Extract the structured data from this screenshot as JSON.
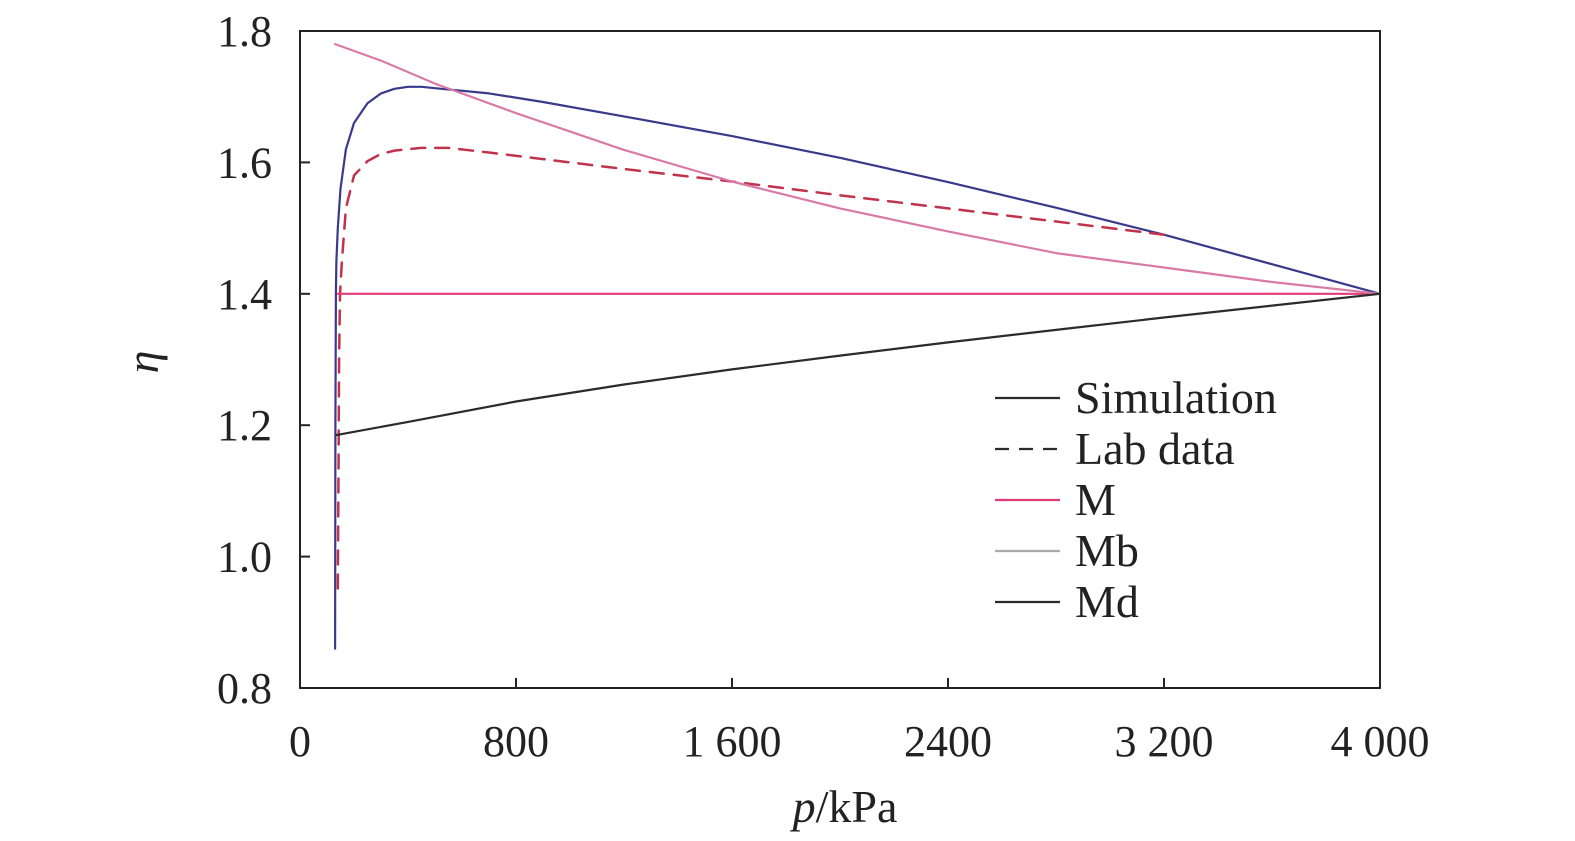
{
  "chart_data": {
    "type": "line",
    "title": "",
    "xlabel": {
      "italic": "p",
      "rest": "/kPa"
    },
    "ylabel": "η",
    "xlim": [
      0,
      4000
    ],
    "ylim": [
      0.8,
      1.8
    ],
    "xticks": [
      {
        "value": 0,
        "label": "0"
      },
      {
        "value": 800,
        "label": "800"
      },
      {
        "value": 1600,
        "label": "1 600"
      },
      {
        "value": 2400,
        "label": "2400"
      },
      {
        "value": 3200,
        "label": "3 200"
      },
      {
        "value": 4000,
        "label": "4 000"
      }
    ],
    "yticks": [
      {
        "value": 0.8,
        "label": "0.8"
      },
      {
        "value": 1.0,
        "label": "1.0"
      },
      {
        "value": 1.2,
        "label": "1.2"
      },
      {
        "value": 1.4,
        "label": "1.4"
      },
      {
        "value": 1.6,
        "label": "1.6"
      },
      {
        "value": 1.8,
        "label": "1.8"
      }
    ],
    "grid": false,
    "legend_position": "lower-right",
    "series": [
      {
        "name": "Simulation",
        "color": "#3a3a8c",
        "dash": "solid",
        "x": [
          4000,
          3600,
          3200,
          2800,
          2400,
          2000,
          1600,
          1200,
          900,
          700,
          500,
          450,
          400,
          350,
          300,
          250,
          200,
          170,
          150,
          140,
          135,
          133,
          131,
          130
        ],
        "y": [
          1.4,
          1.445,
          1.49,
          1.531,
          1.57,
          1.607,
          1.64,
          1.67,
          1.692,
          1.705,
          1.713,
          1.715,
          1.715,
          1.712,
          1.705,
          1.69,
          1.66,
          1.62,
          1.56,
          1.5,
          1.45,
          1.4,
          1.2,
          0.86
        ]
      },
      {
        "name": "Lab data",
        "color": "#c0334d",
        "dash": "dashed",
        "x": [
          3200,
          2800,
          2400,
          2000,
          1600,
          1200,
          900,
          700,
          550,
          450,
          350,
          300,
          250,
          200,
          170,
          155,
          148,
          145,
          143,
          140
        ],
        "y": [
          1.49,
          1.51,
          1.53,
          1.55,
          1.571,
          1.59,
          1.605,
          1.615,
          1.622,
          1.622,
          1.618,
          1.613,
          1.602,
          1.58,
          1.53,
          1.45,
          1.4,
          1.3,
          1.15,
          0.95
        ]
      },
      {
        "name": "M",
        "color": "#e23b7c",
        "dash": "solid",
        "x": [
          140,
          4000
        ],
        "y": [
          1.4,
          1.4
        ]
      },
      {
        "name": "Mb",
        "color": "#d97aa6",
        "dash": "solid",
        "x": [
          130,
          300,
          500,
          800,
          1200,
          1600,
          2000,
          2400,
          2800,
          3200,
          3600,
          4000
        ],
        "y": [
          1.78,
          1.755,
          1.72,
          1.675,
          1.619,
          1.571,
          1.53,
          1.495,
          1.462,
          1.44,
          1.418,
          1.4
        ]
      },
      {
        "name": "Md",
        "color": "#2b2b2b",
        "dash": "solid",
        "x": [
          135,
          400,
          800,
          1200,
          1600,
          2000,
          2400,
          2800,
          3200,
          3600,
          4000
        ],
        "y": [
          1.185,
          1.205,
          1.236,
          1.262,
          1.285,
          1.306,
          1.326,
          1.345,
          1.364,
          1.382,
          1.4
        ]
      }
    ],
    "legend": [
      {
        "label": "Simulation",
        "color": "#2b2b2b",
        "dash": "solid"
      },
      {
        "label": "Lab data",
        "color": "#2b2b2b",
        "dash": "dashed"
      },
      {
        "label": "M",
        "color": "#e23b7c",
        "dash": "solid"
      },
      {
        "label": "Mb",
        "color": "#aaaaaa",
        "dash": "solid"
      },
      {
        "label": "Md",
        "color": "#2b2b2b",
        "dash": "solid"
      }
    ]
  }
}
